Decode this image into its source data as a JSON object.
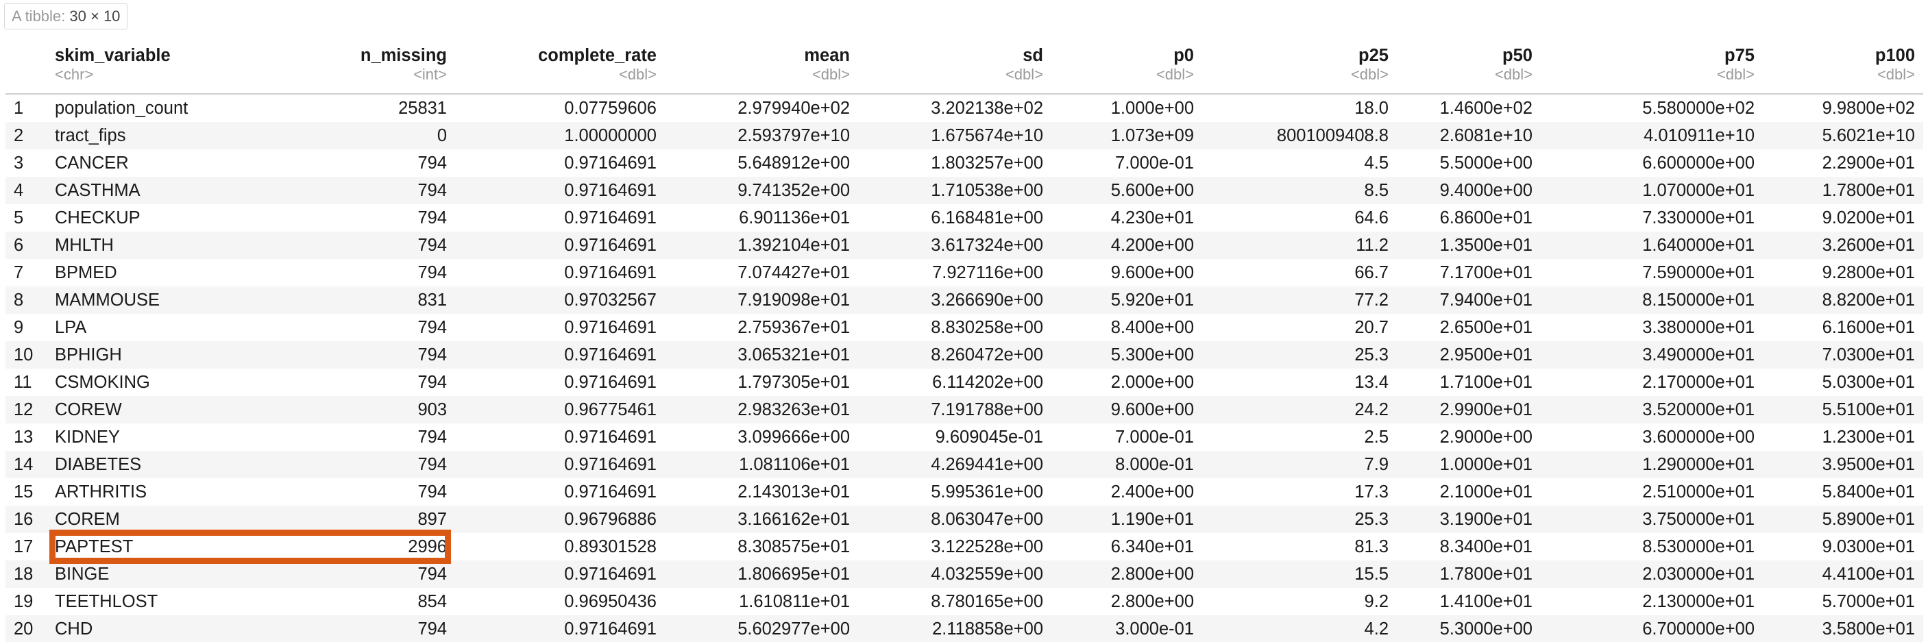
{
  "caption": {
    "label": "A tibble:",
    "dims": "30 × 10"
  },
  "columns": [
    {
      "name": "",
      "type": ""
    },
    {
      "name": "skim_variable",
      "type": "<chr>"
    },
    {
      "name": "n_missing",
      "type": "<int>"
    },
    {
      "name": "complete_rate",
      "type": "<dbl>"
    },
    {
      "name": "mean",
      "type": "<dbl>"
    },
    {
      "name": "sd",
      "type": "<dbl>"
    },
    {
      "name": "p0",
      "type": "<dbl>"
    },
    {
      "name": "p25",
      "type": "<dbl>"
    },
    {
      "name": "p50",
      "type": "<dbl>"
    },
    {
      "name": "p75",
      "type": "<dbl>"
    },
    {
      "name": "p100",
      "type": "<dbl>"
    }
  ],
  "rows": [
    [
      "1",
      "population_count",
      "25831",
      "0.07759606",
      "2.979940e+02",
      "3.202138e+02",
      "1.000e+00",
      "18.0",
      "1.4600e+02",
      "5.580000e+02",
      "9.9800e+02"
    ],
    [
      "2",
      "tract_fips",
      "0",
      "1.00000000",
      "2.593797e+10",
      "1.675674e+10",
      "1.073e+09",
      "8001009408.8",
      "2.6081e+10",
      "4.010911e+10",
      "5.6021e+10"
    ],
    [
      "3",
      "CANCER",
      "794",
      "0.97164691",
      "5.648912e+00",
      "1.803257e+00",
      "7.000e-01",
      "4.5",
      "5.5000e+00",
      "6.600000e+00",
      "2.2900e+01"
    ],
    [
      "4",
      "CASTHMA",
      "794",
      "0.97164691",
      "9.741352e+00",
      "1.710538e+00",
      "5.600e+00",
      "8.5",
      "9.4000e+00",
      "1.070000e+01",
      "1.7800e+01"
    ],
    [
      "5",
      "CHECKUP",
      "794",
      "0.97164691",
      "6.901136e+01",
      "6.168481e+00",
      "4.230e+01",
      "64.6",
      "6.8600e+01",
      "7.330000e+01",
      "9.0200e+01"
    ],
    [
      "6",
      "MHLTH",
      "794",
      "0.97164691",
      "1.392104e+01",
      "3.617324e+00",
      "4.200e+00",
      "11.2",
      "1.3500e+01",
      "1.640000e+01",
      "3.2600e+01"
    ],
    [
      "7",
      "BPMED",
      "794",
      "0.97164691",
      "7.074427e+01",
      "7.927116e+00",
      "9.600e+00",
      "66.7",
      "7.1700e+01",
      "7.590000e+01",
      "9.2800e+01"
    ],
    [
      "8",
      "MAMMOUSE",
      "831",
      "0.97032567",
      "7.919098e+01",
      "3.266690e+00",
      "5.920e+01",
      "77.2",
      "7.9400e+01",
      "8.150000e+01",
      "8.8200e+01"
    ],
    [
      "9",
      "LPA",
      "794",
      "0.97164691",
      "2.759367e+01",
      "8.830258e+00",
      "8.400e+00",
      "20.7",
      "2.6500e+01",
      "3.380000e+01",
      "6.1600e+01"
    ],
    [
      "10",
      "BPHIGH",
      "794",
      "0.97164691",
      "3.065321e+01",
      "8.260472e+00",
      "5.300e+00",
      "25.3",
      "2.9500e+01",
      "3.490000e+01",
      "7.0300e+01"
    ],
    [
      "11",
      "CSMOKING",
      "794",
      "0.97164691",
      "1.797305e+01",
      "6.114202e+00",
      "2.000e+00",
      "13.4",
      "1.7100e+01",
      "2.170000e+01",
      "5.0300e+01"
    ],
    [
      "12",
      "COREW",
      "903",
      "0.96775461",
      "2.983263e+01",
      "7.191788e+00",
      "9.600e+00",
      "24.2",
      "2.9900e+01",
      "3.520000e+01",
      "5.5100e+01"
    ],
    [
      "13",
      "KIDNEY",
      "794",
      "0.97164691",
      "3.099666e+00",
      "9.609045e-01",
      "7.000e-01",
      "2.5",
      "2.9000e+00",
      "3.600000e+00",
      "1.2300e+01"
    ],
    [
      "14",
      "DIABETES",
      "794",
      "0.97164691",
      "1.081106e+01",
      "4.269441e+00",
      "8.000e-01",
      "7.9",
      "1.0000e+01",
      "1.290000e+01",
      "3.9500e+01"
    ],
    [
      "15",
      "ARTHRITIS",
      "794",
      "0.97164691",
      "2.143013e+01",
      "5.995361e+00",
      "2.400e+00",
      "17.3",
      "2.1000e+01",
      "2.510000e+01",
      "5.8400e+01"
    ],
    [
      "16",
      "COREM",
      "897",
      "0.96796886",
      "3.166162e+01",
      "8.063047e+00",
      "1.190e+01",
      "25.3",
      "3.1900e+01",
      "3.750000e+01",
      "5.8900e+01"
    ],
    [
      "17",
      "PAPTEST",
      "2996",
      "0.89301528",
      "8.308575e+01",
      "3.122528e+00",
      "6.340e+01",
      "81.3",
      "8.3400e+01",
      "8.530000e+01",
      "9.0300e+01"
    ],
    [
      "18",
      "BINGE",
      "794",
      "0.97164691",
      "1.806695e+01",
      "4.032559e+00",
      "2.800e+00",
      "15.5",
      "1.7800e+01",
      "2.030000e+01",
      "4.4100e+01"
    ],
    [
      "19",
      "TEETHLOST",
      "854",
      "0.96950436",
      "1.610811e+01",
      "8.780165e+00",
      "2.800e+00",
      "9.2",
      "1.4100e+01",
      "2.130000e+01",
      "5.7000e+01"
    ],
    [
      "20",
      "CHD",
      "794",
      "0.97164691",
      "5.602977e+00",
      "2.118858e+00",
      "3.000e-01",
      "4.2",
      "5.3000e+00",
      "6.700000e+00",
      "3.5800e+01"
    ]
  ],
  "highlight": {
    "row": "17",
    "color": "#d95813"
  }
}
